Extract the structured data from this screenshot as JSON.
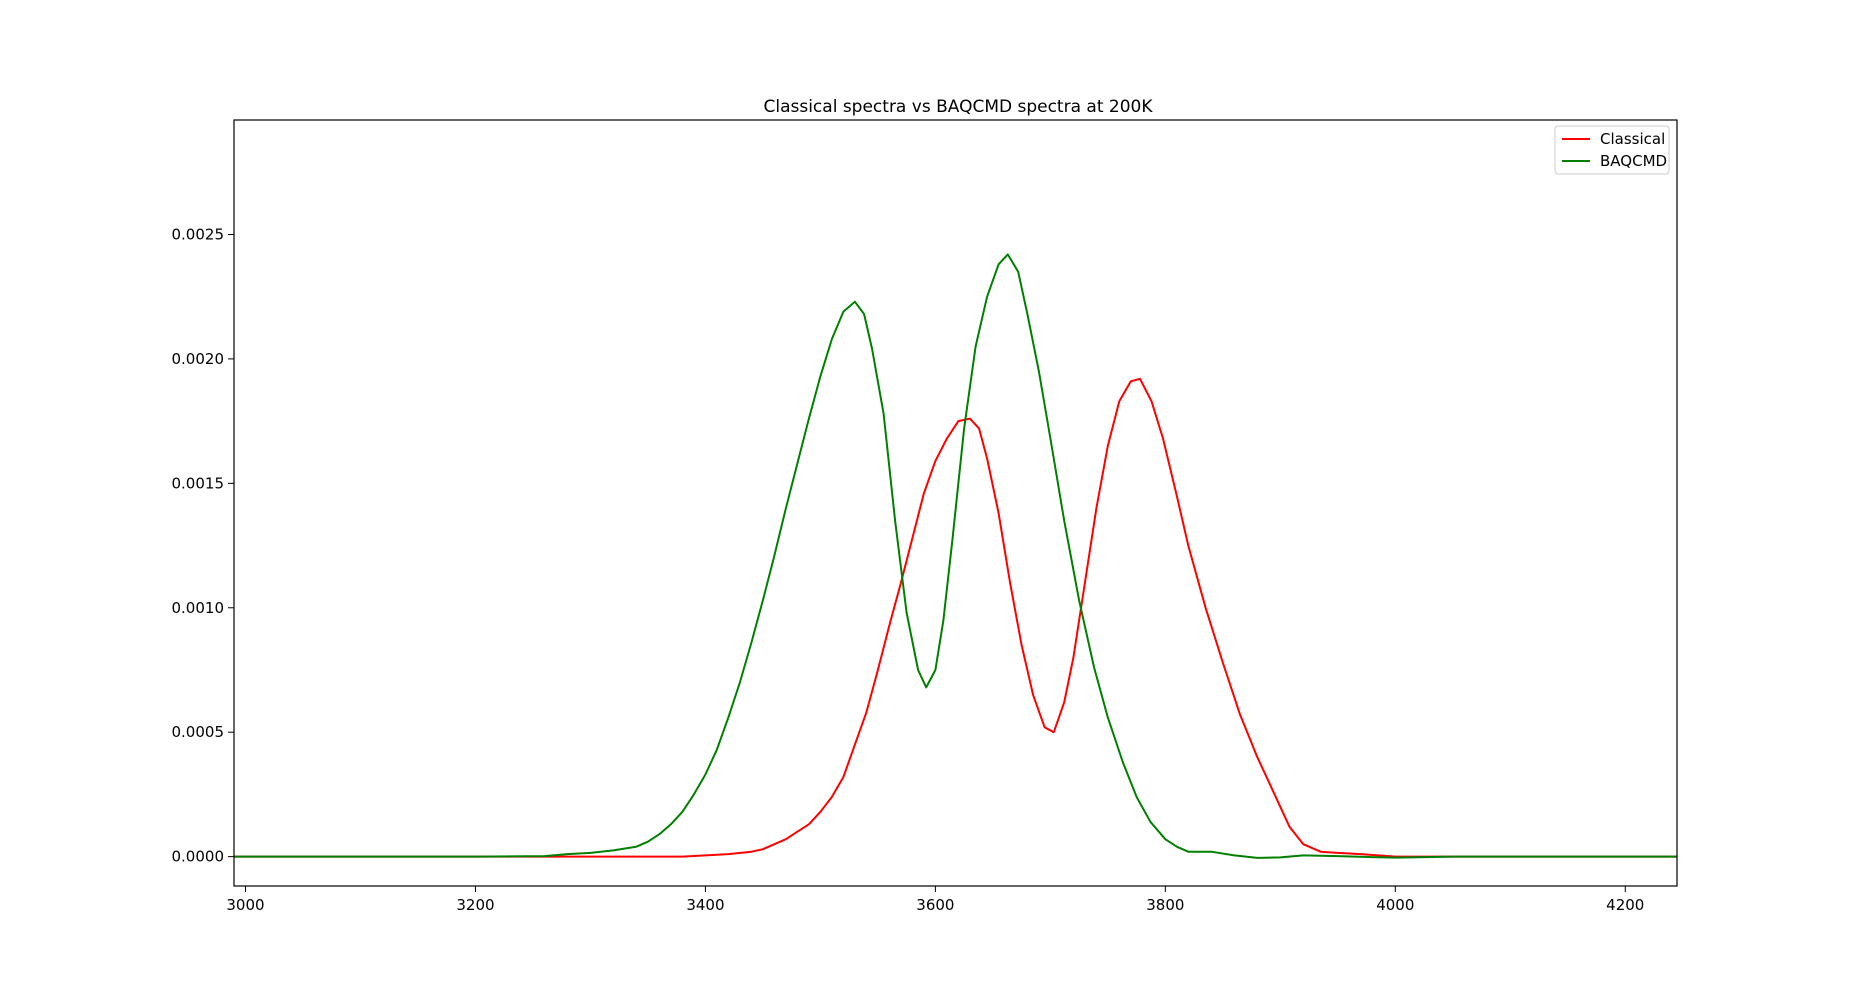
{
  "chart_data": {
    "type": "line",
    "title": "Classical spectra vs BAQCMD spectra at 200K",
    "xlabel": "",
    "ylabel": "",
    "xlim": [
      2990,
      4245
    ],
    "ylim": [
      -0.000118,
      0.00296
    ],
    "x_ticks": [
      3000,
      3200,
      3400,
      3600,
      3800,
      4000,
      4200
    ],
    "x_tick_labels": [
      "3000",
      "3200",
      "3400",
      "3600",
      "3800",
      "4000",
      "4200"
    ],
    "y_ticks": [
      0.0,
      0.0005,
      0.001,
      0.0015,
      0.002,
      0.0025
    ],
    "y_tick_labels": [
      "0.0000",
      "0.0005",
      "0.0010",
      "0.0015",
      "0.0020",
      "0.0025"
    ],
    "grid": false,
    "legend_position": "top-right",
    "series": [
      {
        "name": "Classical",
        "color": "#ff0000",
        "points": [
          [
            2990,
            0.0
          ],
          [
            3100,
            0.0
          ],
          [
            3200,
            0.0
          ],
          [
            3300,
            0.0
          ],
          [
            3350,
            0.0
          ],
          [
            3380,
            0.0
          ],
          [
            3400,
            5e-06
          ],
          [
            3420,
            1e-05
          ],
          [
            3440,
            2e-05
          ],
          [
            3450,
            3e-05
          ],
          [
            3460,
            5e-05
          ],
          [
            3470,
            7e-05
          ],
          [
            3480,
            0.0001
          ],
          [
            3490,
            0.00013
          ],
          [
            3500,
            0.00018
          ],
          [
            3510,
            0.00024
          ],
          [
            3520,
            0.00032
          ],
          [
            3530,
            0.00045
          ],
          [
            3540,
            0.00058
          ],
          [
            3550,
            0.00075
          ],
          [
            3560,
            0.00093
          ],
          [
            3570,
            0.0011
          ],
          [
            3580,
            0.00128
          ],
          [
            3590,
            0.00146
          ],
          [
            3600,
            0.00159
          ],
          [
            3610,
            0.00168
          ],
          [
            3620,
            0.00175
          ],
          [
            3630,
            0.00176
          ],
          [
            3638,
            0.00172
          ],
          [
            3645,
            0.0016
          ],
          [
            3655,
            0.00138
          ],
          [
            3665,
            0.0011
          ],
          [
            3675,
            0.00085
          ],
          [
            3685,
            0.00065
          ],
          [
            3695,
            0.00052
          ],
          [
            3703,
            0.0005
          ],
          [
            3712,
            0.00062
          ],
          [
            3720,
            0.0008
          ],
          [
            3730,
            0.0011
          ],
          [
            3740,
            0.0014
          ],
          [
            3750,
            0.00165
          ],
          [
            3760,
            0.00183
          ],
          [
            3770,
            0.00191
          ],
          [
            3778,
            0.00192
          ],
          [
            3788,
            0.00183
          ],
          [
            3798,
            0.00168
          ],
          [
            3810,
            0.00145
          ],
          [
            3820,
            0.00125
          ],
          [
            3835,
            0.001
          ],
          [
            3850,
            0.00078
          ],
          [
            3865,
            0.00057
          ],
          [
            3880,
            0.0004
          ],
          [
            3895,
            0.00025
          ],
          [
            3908,
            0.00012
          ],
          [
            3920,
            5e-05
          ],
          [
            3935,
            2e-05
          ],
          [
            3950,
            1.5e-05
          ],
          [
            3970,
            1e-05
          ],
          [
            4000,
            0.0
          ],
          [
            4100,
            0.0
          ],
          [
            4245,
            0.0
          ]
        ]
      },
      {
        "name": "BAQCMD",
        "color": "#008000",
        "points": [
          [
            2990,
            0.0
          ],
          [
            3100,
            0.0
          ],
          [
            3200,
            0.0
          ],
          [
            3260,
            2e-06
          ],
          [
            3280,
            1e-05
          ],
          [
            3300,
            1.5e-05
          ],
          [
            3320,
            2.5e-05
          ],
          [
            3340,
            4e-05
          ],
          [
            3350,
            6e-05
          ],
          [
            3360,
            9e-05
          ],
          [
            3370,
            0.00013
          ],
          [
            3380,
            0.00018
          ],
          [
            3390,
            0.00025
          ],
          [
            3400,
            0.00033
          ],
          [
            3410,
            0.00043
          ],
          [
            3420,
            0.00056
          ],
          [
            3430,
            0.0007
          ],
          [
            3440,
            0.00086
          ],
          [
            3450,
            0.00103
          ],
          [
            3460,
            0.00121
          ],
          [
            3470,
            0.0014
          ],
          [
            3480,
            0.00158
          ],
          [
            3490,
            0.00176
          ],
          [
            3500,
            0.00193
          ],
          [
            3510,
            0.00208
          ],
          [
            3520,
            0.00219
          ],
          [
            3530,
            0.00223
          ],
          [
            3538,
            0.00218
          ],
          [
            3545,
            0.00204
          ],
          [
            3555,
            0.00178
          ],
          [
            3565,
            0.00135
          ],
          [
            3575,
            0.00098
          ],
          [
            3585,
            0.00075
          ],
          [
            3592,
            0.00068
          ],
          [
            3600,
            0.00075
          ],
          [
            3607,
            0.00095
          ],
          [
            3615,
            0.00128
          ],
          [
            3625,
            0.00172
          ],
          [
            3635,
            0.00205
          ],
          [
            3645,
            0.00225
          ],
          [
            3655,
            0.00238
          ],
          [
            3663,
            0.00242
          ],
          [
            3672,
            0.00235
          ],
          [
            3680,
            0.00218
          ],
          [
            3690,
            0.00195
          ],
          [
            3700,
            0.00168
          ],
          [
            3712,
            0.00135
          ],
          [
            3725,
            0.00103
          ],
          [
            3738,
            0.00076
          ],
          [
            3750,
            0.00056
          ],
          [
            3763,
            0.00038
          ],
          [
            3775,
            0.00024
          ],
          [
            3787,
            0.00014
          ],
          [
            3800,
            7e-05
          ],
          [
            3810,
            4e-05
          ],
          [
            3820,
            2e-05
          ],
          [
            3840,
            2e-05
          ],
          [
            3860,
            5e-06
          ],
          [
            3880,
            -5e-06
          ],
          [
            3900,
            -3e-06
          ],
          [
            3920,
            5e-06
          ],
          [
            3950,
            2e-06
          ],
          [
            3980,
            -2e-06
          ],
          [
            4000,
            -4e-06
          ],
          [
            4050,
            0.0
          ],
          [
            4245,
            0.0
          ]
        ]
      }
    ]
  }
}
